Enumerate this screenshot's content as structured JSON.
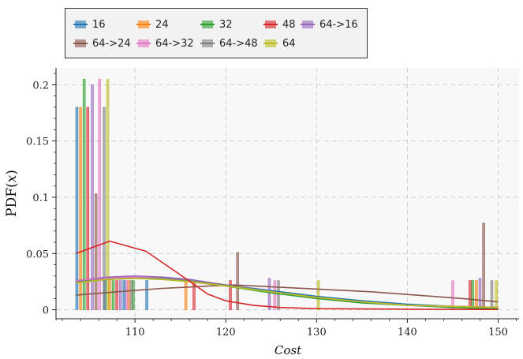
{
  "chart_data": {
    "type": "histogram",
    "xlabel": "Cost",
    "ylabel": "PDF(x)",
    "xlim": [
      101.3,
      152.3
    ],
    "ylim": [
      -0.008,
      0.215
    ],
    "xticks": [
      110,
      120,
      130,
      140,
      150
    ],
    "yticks": [
      0,
      0.05,
      0.1,
      0.15,
      0.2
    ],
    "ytick_labels": [
      "0",
      "0.05",
      "0.1",
      "0.15",
      "0.2"
    ],
    "grid": true,
    "legend_placement": "top-left, outside the axes",
    "legend_columns": 5,
    "series": [
      {
        "name": "16",
        "color": "#1f77b4",
        "bars": [
          [
            103.6,
            0.18
          ],
          [
            106.7,
            0.026
          ],
          [
            108.8,
            0.026
          ],
          [
            111.3,
            0.026
          ]
        ],
        "kde": [
          [
            103.5,
            0.024
          ],
          [
            107,
            0.027
          ],
          [
            110,
            0.028
          ],
          [
            113,
            0.028
          ],
          [
            116,
            0.026
          ],
          [
            120,
            0.022
          ],
          [
            125,
            0.017
          ],
          [
            130,
            0.012
          ],
          [
            135,
            0.008
          ],
          [
            140,
            0.005
          ],
          [
            145,
            0.003
          ],
          [
            150,
            0.002
          ]
        ]
      },
      {
        "name": "24",
        "color": "#ff7f0e",
        "bars": [
          [
            104.0,
            0.18
          ],
          [
            107.2,
            0.026
          ],
          [
            109.3,
            0.026
          ],
          [
            115.6,
            0.026
          ],
          [
            147.6,
            0.026
          ]
        ],
        "kde": [
          [
            103.5,
            0.025
          ],
          [
            107,
            0.028
          ],
          [
            110,
            0.029
          ],
          [
            113,
            0.028
          ],
          [
            116,
            0.026
          ],
          [
            120,
            0.022
          ],
          [
            125,
            0.016
          ],
          [
            130,
            0.011
          ],
          [
            135,
            0.007
          ],
          [
            140,
            0.004
          ],
          [
            145,
            0.003
          ],
          [
            150,
            0.002
          ]
        ]
      },
      {
        "name": "32",
        "color": "#2ca02c",
        "bars": [
          [
            104.4,
            0.205
          ],
          [
            107.6,
            0.026
          ],
          [
            109.8,
            0.026
          ],
          [
            147.2,
            0.026
          ]
        ],
        "kde": [
          [
            103.5,
            0.025
          ],
          [
            107,
            0.027
          ],
          [
            110,
            0.028
          ],
          [
            113,
            0.027
          ],
          [
            116,
            0.025
          ],
          [
            120,
            0.021
          ],
          [
            125,
            0.015
          ],
          [
            130,
            0.01
          ],
          [
            135,
            0.006
          ],
          [
            140,
            0.004
          ],
          [
            145,
            0.002
          ],
          [
            150,
            0.001
          ]
        ]
      },
      {
        "name": "48",
        "color": "#d62728",
        "bars": [
          [
            104.8,
            0.18
          ],
          [
            108.0,
            0.026
          ],
          [
            116.5,
            0.026
          ],
          [
            120.5,
            0.026
          ],
          [
            146.9,
            0.026
          ]
        ],
        "kde": [
          [
            103.5,
            0.05
          ],
          [
            107.2,
            0.061
          ],
          [
            111.2,
            0.052
          ],
          [
            115,
            0.031
          ],
          [
            118,
            0.014
          ],
          [
            120,
            0.008
          ],
          [
            123,
            0.004
          ],
          [
            126,
            0.002
          ],
          [
            130,
            0.001
          ],
          [
            140,
            0.0005
          ],
          [
            150,
            0.0003
          ]
        ]
      },
      {
        "name": "64->16",
        "color": "#9467bd",
        "bars": [
          [
            105.3,
            0.2
          ],
          [
            108.4,
            0.026
          ],
          [
            124.8,
            0.028
          ],
          [
            148.0,
            0.028
          ]
        ],
        "kde": [
          [
            103.5,
            0.026
          ],
          [
            107,
            0.029
          ],
          [
            110,
            0.03
          ],
          [
            113,
            0.029
          ],
          [
            116,
            0.027
          ],
          [
            120,
            0.022
          ],
          [
            125,
            0.016
          ],
          [
            130,
            0.011
          ],
          [
            135,
            0.007
          ],
          [
            140,
            0.004
          ],
          [
            145,
            0.003
          ],
          [
            150,
            0.002
          ]
        ]
      },
      {
        "name": "64->24",
        "color": "#8c564b",
        "bars": [
          [
            105.7,
            0.103
          ],
          [
            121.3,
            0.051
          ],
          [
            148.4,
            0.077
          ]
        ],
        "kde": [
          [
            103.5,
            0.013
          ],
          [
            108,
            0.016
          ],
          [
            113,
            0.019
          ],
          [
            118,
            0.021
          ],
          [
            121,
            0.022
          ],
          [
            126,
            0.02
          ],
          [
            131,
            0.018
          ],
          [
            136,
            0.016
          ],
          [
            141,
            0.013
          ],
          [
            146,
            0.01
          ],
          [
            150,
            0.007
          ]
        ]
      },
      {
        "name": "64->32",
        "color": "#e377c2",
        "bars": [
          [
            106.1,
            0.205
          ],
          [
            109.1,
            0.026
          ],
          [
            125.4,
            0.026
          ],
          [
            145.0,
            0.026
          ]
        ],
        "kde": [
          [
            103.5,
            0.026
          ],
          [
            107,
            0.028
          ],
          [
            110,
            0.029
          ],
          [
            113,
            0.028
          ],
          [
            116,
            0.026
          ],
          [
            120,
            0.022
          ],
          [
            125,
            0.016
          ],
          [
            130,
            0.011
          ],
          [
            135,
            0.007
          ],
          [
            140,
            0.004
          ],
          [
            145,
            0.003
          ],
          [
            150,
            0.002
          ]
        ]
      },
      {
        "name": "64->48",
        "color": "#7f7f7f",
        "bars": [
          [
            106.6,
            0.18
          ],
          [
            109.6,
            0.026
          ],
          [
            125.8,
            0.026
          ],
          [
            149.3,
            0.026
          ]
        ],
        "kde": [
          [
            103.5,
            0.025
          ],
          [
            107,
            0.027
          ],
          [
            110,
            0.028
          ],
          [
            113,
            0.028
          ],
          [
            116,
            0.026
          ],
          [
            120,
            0.022
          ],
          [
            125,
            0.016
          ],
          [
            130,
            0.011
          ],
          [
            135,
            0.007
          ],
          [
            140,
            0.004
          ],
          [
            145,
            0.003
          ],
          [
            150,
            0.002
          ]
        ]
      },
      {
        "name": "64",
        "color": "#bcbd22",
        "bars": [
          [
            107.0,
            0.205
          ],
          [
            130.2,
            0.026
          ],
          [
            149.8,
            0.026
          ]
        ],
        "kde": [
          [
            103.5,
            0.024
          ],
          [
            107,
            0.027
          ],
          [
            110,
            0.028
          ],
          [
            113,
            0.027
          ],
          [
            116,
            0.025
          ],
          [
            120,
            0.021
          ],
          [
            125,
            0.016
          ],
          [
            130,
            0.011
          ],
          [
            135,
            0.007
          ],
          [
            140,
            0.004
          ],
          [
            145,
            0.003
          ],
          [
            150,
            0.002
          ]
        ]
      }
    ]
  }
}
